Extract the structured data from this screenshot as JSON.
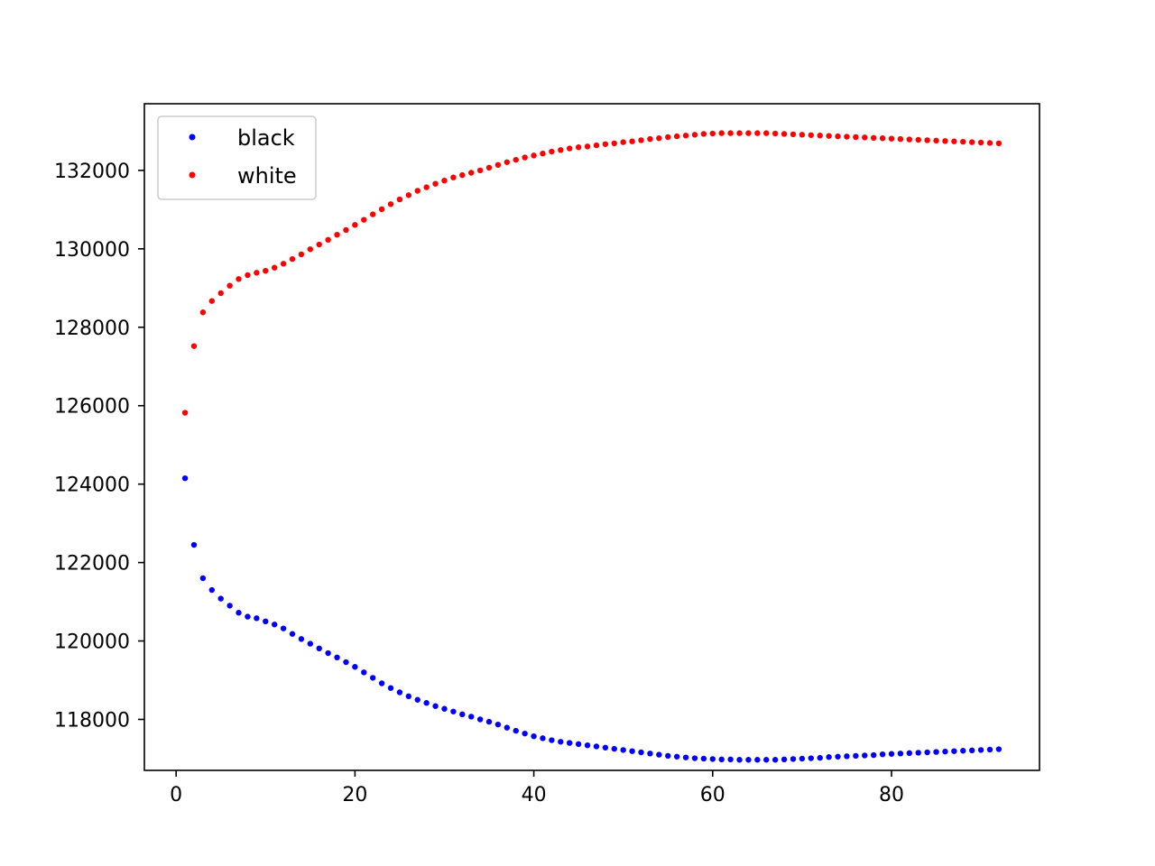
{
  "chart_data": {
    "type": "scatter",
    "title": "",
    "xlabel": "",
    "ylabel": "",
    "xlim": [
      -3.55,
      96.55
    ],
    "ylim": [
      116700,
      133700
    ],
    "xticks": [
      0,
      20,
      40,
      60,
      80
    ],
    "yticks": [
      118000,
      120000,
      122000,
      124000,
      126000,
      128000,
      130000,
      132000
    ],
    "grid": false,
    "legend_position": "top-left",
    "series": [
      {
        "name": "black",
        "color": "#0000ff",
        "x": [
          1,
          2,
          3,
          4,
          5,
          6,
          7,
          8,
          9,
          10,
          11,
          12,
          13,
          14,
          15,
          16,
          17,
          18,
          19,
          20,
          21,
          22,
          23,
          24,
          25,
          26,
          27,
          28,
          29,
          30,
          31,
          32,
          33,
          34,
          35,
          36,
          37,
          38,
          39,
          40,
          41,
          42,
          43,
          44,
          45,
          46,
          47,
          48,
          49,
          50,
          51,
          52,
          53,
          54,
          55,
          56,
          57,
          58,
          59,
          60,
          61,
          62,
          63,
          64,
          65,
          66,
          67,
          68,
          69,
          70,
          71,
          72,
          73,
          74,
          75,
          76,
          77,
          78,
          79,
          80,
          81,
          82,
          83,
          84,
          85,
          86,
          87,
          88,
          89,
          90,
          91,
          92
        ],
        "y": [
          124150,
          122450,
          121600,
          121300,
          121080,
          120900,
          120720,
          120620,
          120580,
          120500,
          120420,
          120320,
          120180,
          120050,
          119930,
          119810,
          119690,
          119580,
          119460,
          119340,
          119200,
          119060,
          118920,
          118800,
          118690,
          118590,
          118500,
          118420,
          118340,
          118270,
          118200,
          118130,
          118070,
          118000,
          117940,
          117870,
          117790,
          117710,
          117640,
          117570,
          117520,
          117470,
          117430,
          117400,
          117370,
          117340,
          117310,
          117280,
          117250,
          117220,
          117190,
          117160,
          117130,
          117100,
          117070,
          117050,
          117030,
          117010,
          117000,
          116990,
          116980,
          116980,
          116970,
          116970,
          116970,
          116970,
          116970,
          116980,
          116990,
          117000,
          117010,
          117020,
          117040,
          117050,
          117060,
          117070,
          117080,
          117090,
          117110,
          117120,
          117130,
          117140,
          117150,
          117160,
          117170,
          117180,
          117190,
          117200,
          117210,
          117220,
          117230,
          117240
        ]
      },
      {
        "name": "white",
        "color": "#ff0000",
        "x": [
          1,
          2,
          3,
          4,
          5,
          6,
          7,
          8,
          9,
          10,
          11,
          12,
          13,
          14,
          15,
          16,
          17,
          18,
          19,
          20,
          21,
          22,
          23,
          24,
          25,
          26,
          27,
          28,
          29,
          30,
          31,
          32,
          33,
          34,
          35,
          36,
          37,
          38,
          39,
          40,
          41,
          42,
          43,
          44,
          45,
          46,
          47,
          48,
          49,
          50,
          51,
          52,
          53,
          54,
          55,
          56,
          57,
          58,
          59,
          60,
          61,
          62,
          63,
          64,
          65,
          66,
          67,
          68,
          69,
          70,
          71,
          72,
          73,
          74,
          75,
          76,
          77,
          78,
          79,
          80,
          81,
          82,
          83,
          84,
          85,
          86,
          87,
          88,
          89,
          90,
          91,
          92
        ],
        "y": [
          125820,
          127520,
          128380,
          128670,
          128870,
          129060,
          129230,
          129330,
          129390,
          129440,
          129520,
          129620,
          129740,
          129860,
          129990,
          130110,
          130230,
          130360,
          130480,
          130610,
          130740,
          130880,
          131010,
          131140,
          131260,
          131370,
          131480,
          131570,
          131660,
          131740,
          131820,
          131880,
          131940,
          132000,
          132070,
          132140,
          132210,
          132270,
          132330,
          132380,
          132430,
          132480,
          132520,
          132560,
          132590,
          132610,
          132640,
          132670,
          132690,
          132720,
          132740,
          132770,
          132800,
          132820,
          132850,
          132870,
          132890,
          132910,
          132930,
          132940,
          132950,
          132950,
          132950,
          132950,
          132950,
          132950,
          132940,
          132930,
          132920,
          132910,
          132900,
          132890,
          132880,
          132870,
          132860,
          132850,
          132840,
          132830,
          132820,
          132810,
          132800,
          132790,
          132780,
          132770,
          132760,
          132750,
          132740,
          132730,
          132720,
          132710,
          132700,
          132690
        ]
      }
    ]
  }
}
